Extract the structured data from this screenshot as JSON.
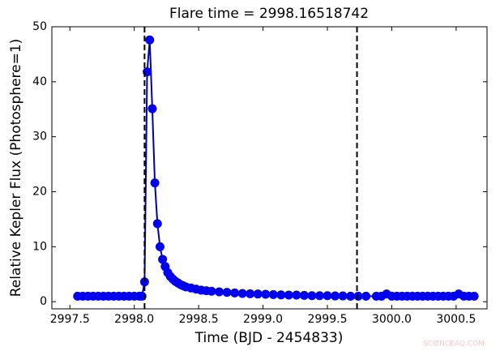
{
  "chart_data": {
    "type": "line",
    "title": "Flare time = 2998.16518742",
    "x_label": "Time (BJD - 2454833)",
    "y_label": "Relative Kepler Flux (Photosphere=1)",
    "watermark": "SCIENCEAQ.COM",
    "xlim": [
      2997.36,
      3000.74
    ],
    "ylim": [
      -1.3,
      50
    ],
    "xticks": [
      2997.5,
      {
        "value": 2998,
        "label": "2998.0"
      },
      2998.5,
      {
        "value": 2999,
        "label": "2999.0"
      },
      2999.5,
      {
        "value": 3000,
        "label": "3000.0"
      },
      3000.5
    ],
    "yticks": [
      0,
      10,
      20,
      30,
      40,
      50
    ],
    "vlines": [
      2998.08,
      2999.73
    ],
    "series": [
      {
        "color": "#0000ee",
        "line_color": "#0000aa",
        "x": [
          2997.56,
          2997.6,
          2997.64,
          2997.68,
          2997.72,
          2997.76,
          2997.8,
          2997.84,
          2997.88,
          2997.92,
          2997.96,
          2998.0,
          2998.04,
          2998.06,
          2998.08,
          2998.1,
          2998.12,
          2998.14,
          2998.16,
          2998.18,
          2998.2,
          2998.22,
          2998.24,
          2998.26,
          2998.28,
          2998.3,
          2998.32,
          2998.34,
          2998.36,
          2998.38,
          2998.4,
          2998.44,
          2998.48,
          2998.52,
          2998.56,
          2998.6,
          2998.66,
          2998.72,
          2998.78,
          2998.84,
          2998.9,
          2998.96,
          2999.02,
          2999.08,
          2999.14,
          2999.2,
          2999.26,
          2999.32,
          2999.38,
          2999.44,
          2999.5,
          2999.56,
          2999.62,
          2999.68,
          2999.74,
          2999.8,
          2999.88,
          2999.92,
          2999.96,
          3000.0,
          3000.04,
          3000.08,
          3000.12,
          3000.16,
          3000.2,
          3000.24,
          3000.28,
          3000.32,
          3000.36,
          3000.4,
          3000.44,
          3000.48,
          3000.52,
          3000.56,
          3000.6,
          3000.64
        ],
        "values": [
          1.0,
          1.0,
          1.0,
          1.0,
          1.0,
          1.0,
          1.0,
          1.0,
          1.0,
          1.0,
          1.0,
          1.0,
          1.0,
          1.0,
          3.6,
          41.8,
          47.6,
          35.1,
          21.6,
          14.2,
          10.0,
          7.7,
          6.4,
          5.3,
          4.6,
          4.1,
          3.7,
          3.4,
          3.1,
          2.9,
          2.7,
          2.5,
          2.3,
          2.1,
          2.0,
          1.9,
          1.8,
          1.7,
          1.6,
          1.5,
          1.45,
          1.4,
          1.35,
          1.3,
          1.25,
          1.2,
          1.2,
          1.15,
          1.1,
          1.1,
          1.1,
          1.05,
          1.05,
          1.0,
          1.0,
          1.0,
          1.0,
          1.0,
          1.4,
          1.0,
          1.0,
          1.0,
          1.0,
          1.0,
          1.0,
          1.0,
          1.0,
          1.0,
          1.0,
          1.0,
          1.0,
          1.0,
          1.4,
          1.0,
          1.0,
          1.0
        ]
      }
    ]
  }
}
